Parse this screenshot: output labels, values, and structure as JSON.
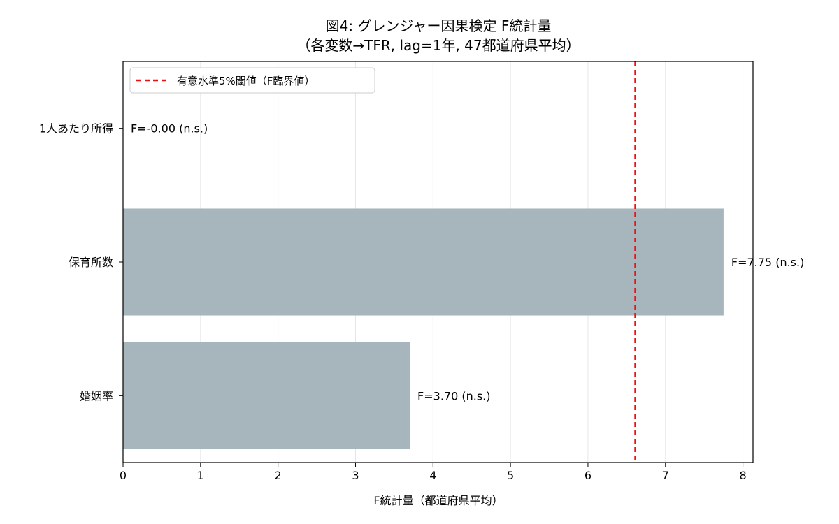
{
  "chart_data": {
    "type": "bar",
    "orientation": "horizontal",
    "title": "図4: グレンジャー因果検定 F統計量",
    "subtitle": "（各変数→TFR, lag=1年, 47都道府県平均）",
    "xlabel": "F統計量（都道府県平均）",
    "ylabel": "",
    "categories": [
      "1人あたり所得",
      "保育所数",
      "婚姻率"
    ],
    "values": [
      0.0,
      7.75,
      3.7
    ],
    "data_labels": [
      "F=-0.00 (n.s.)",
      "F=7.75 (n.s.)",
      "F=3.70 (n.s.)"
    ],
    "xlim": [
      0,
      8.13
    ],
    "xticks": [
      0,
      1,
      2,
      3,
      4,
      5,
      6,
      7,
      8
    ],
    "grid": "vertical",
    "bar_color": "#a7b5bd",
    "threshold": {
      "value": 6.61,
      "label": "有意水準5%閾値（F臨界値）",
      "color": "#ee1111",
      "style": "dashed"
    },
    "legend_position": "upper-left"
  }
}
